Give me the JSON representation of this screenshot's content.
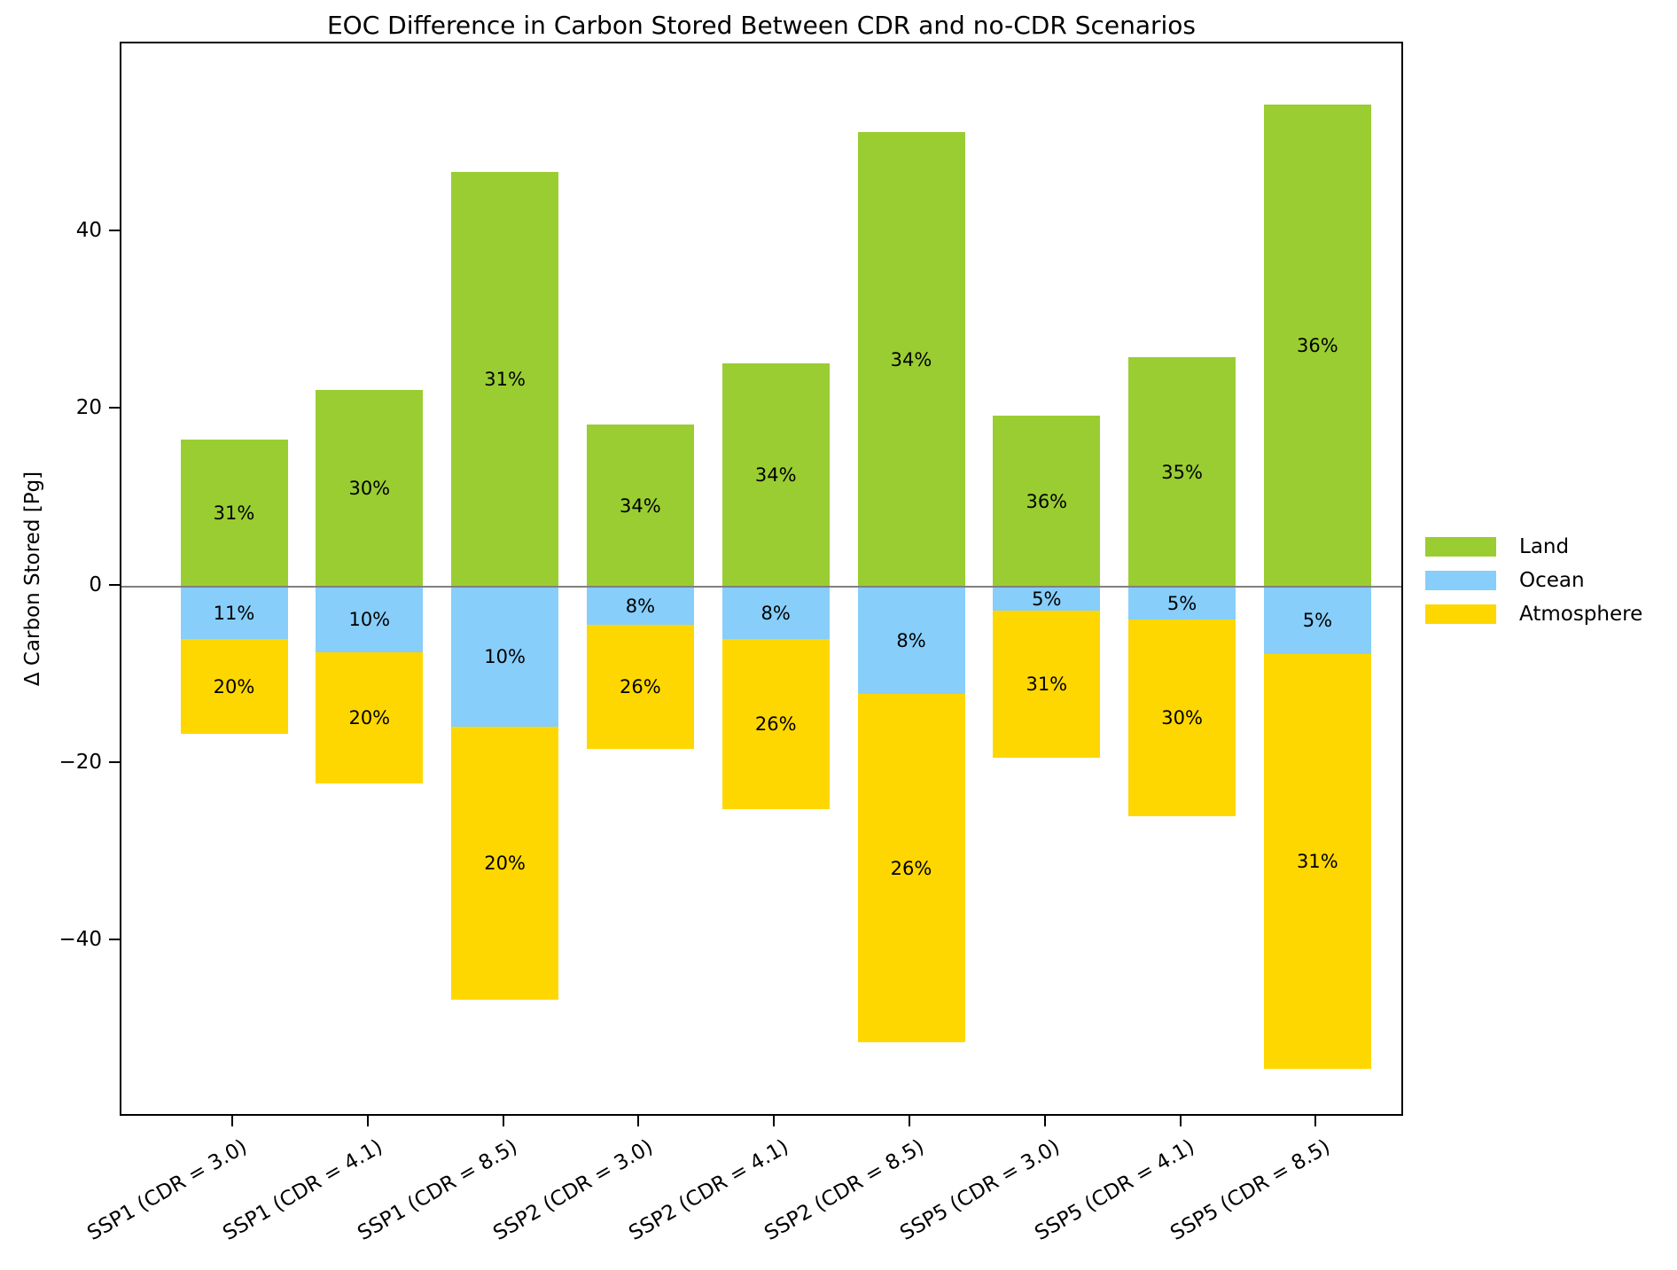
{
  "chart": {
    "title": "EOC Difference in Carbon Stored Between CDR and no-CDR Scenarios",
    "ylabel": "Δ Carbon Stored [Pg]"
  },
  "chart_data": {
    "type": "bar",
    "stacked": true,
    "title": "EOC Difference in Carbon Stored Between CDR and no-CDR Scenarios",
    "xlabel": "",
    "ylabel": "Δ Carbon Stored [Pg]",
    "categories": [
      "SSP1 (CDR = 3.0)",
      "SSP1 (CDR = 4.1)",
      "SSP1 (CDR = 8.5)",
      "SSP2 (CDR = 3.0)",
      "SSP2 (CDR = 4.1)",
      "SSP2 (CDR = 8.5)",
      "SSP5 (CDR = 3.0)",
      "SSP5 (CDR = 4.1)",
      "SSP5 (CDR = 8.5)"
    ],
    "series": [
      {
        "name": "Land",
        "color": "#9ACD32",
        "values": [
          16.6,
          22.2,
          46.8,
          18.3,
          25.2,
          51.3,
          19.3,
          25.9,
          54.4
        ],
        "labels": [
          "31%",
          "30%",
          "31%",
          "34%",
          "34%",
          "34%",
          "36%",
          "35%",
          "36%"
        ]
      },
      {
        "name": "Ocean",
        "color": "#87CEFA",
        "values": [
          -5.9,
          -7.4,
          -15.8,
          -4.3,
          -5.9,
          -12.1,
          -2.7,
          -3.7,
          -7.6
        ],
        "labels": [
          "11%",
          "10%",
          "10%",
          "8%",
          "8%",
          "8%",
          "5%",
          "5%",
          "5%"
        ]
      },
      {
        "name": "Atmosphere",
        "color": "#FFD700",
        "values": [
          -10.7,
          -14.8,
          -30.8,
          -14.0,
          -19.2,
          -39.3,
          -16.6,
          -22.2,
          -46.8
        ],
        "labels": [
          "20%",
          "20%",
          "20%",
          "26%",
          "26%",
          "26%",
          "31%",
          "30%",
          "31%"
        ]
      }
    ],
    "ylim": [
      -59.9,
      61.3
    ],
    "yticks": [
      40,
      20,
      0,
      -20,
      -40
    ],
    "ytick_labels": [
      "40",
      "20",
      "0",
      "−20",
      "−40"
    ],
    "zero_line_color": "#808080",
    "grid": false,
    "legend_position": "outside center right",
    "legend_entries": [
      "Land",
      "Ocean",
      "Atmosphere"
    ]
  }
}
